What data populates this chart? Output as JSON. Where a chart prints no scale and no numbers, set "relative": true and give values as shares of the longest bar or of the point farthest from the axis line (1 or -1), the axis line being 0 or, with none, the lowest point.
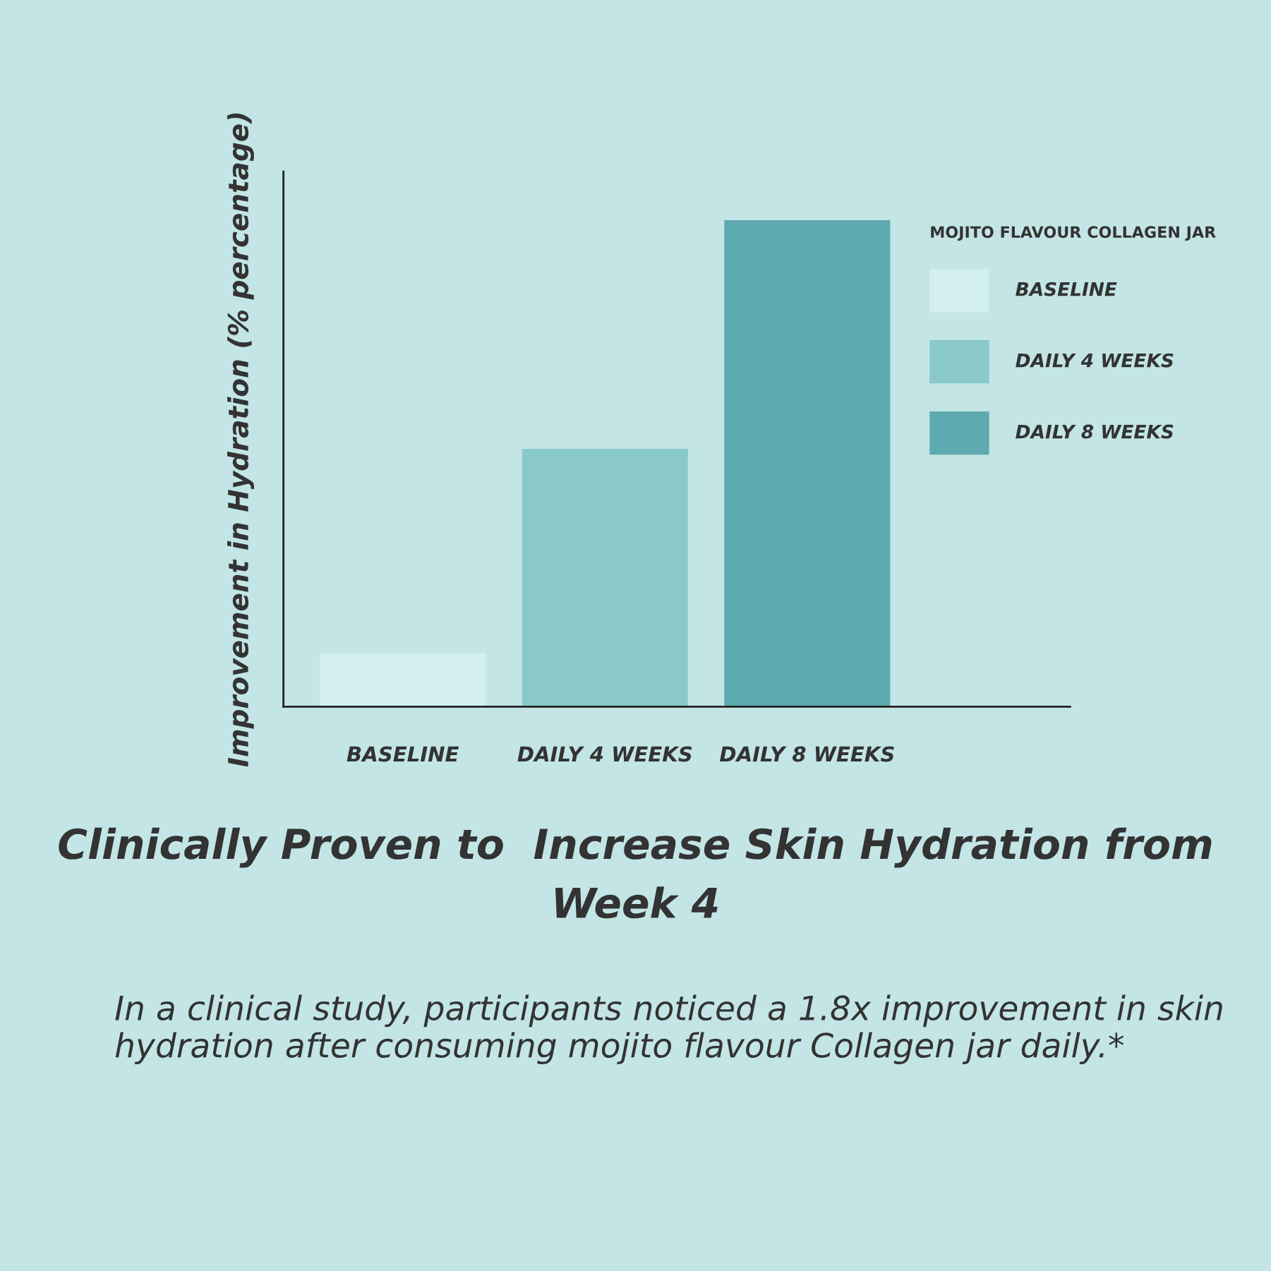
{
  "chart_data": {
    "type": "bar",
    "title": "Clinically Proven to  Increase Skin Hydration from Week 4",
    "ylabel": "Improvement in Hydration (% percentage)",
    "legend_title": "MOJITO FLAVOUR COLLAGEN JAR",
    "categories": [
      "BASELINE",
      "DAILY 4 WEEKS",
      "DAILY 8 WEEKS"
    ],
    "series": [
      {
        "name": "BASELINE",
        "color": "#d3eeee",
        "values": [
          0.11,
          null,
          null
        ]
      },
      {
        "name": "DAILY 4 WEEKS",
        "color": "#89c9c9",
        "values": [
          null,
          0.53,
          null
        ]
      },
      {
        "name": "DAILY 8 WEEKS",
        "color": "#5eaab1",
        "values": [
          null,
          null,
          1
        ]
      }
    ],
    "relative": true,
    "grid": false,
    "legend": "top right",
    "annotations": [
      "In a clinical study, participants noticed a 1.8x improvement in skin hydration after consuming mojito flavour Collagen jar daily.*"
    ]
  }
}
